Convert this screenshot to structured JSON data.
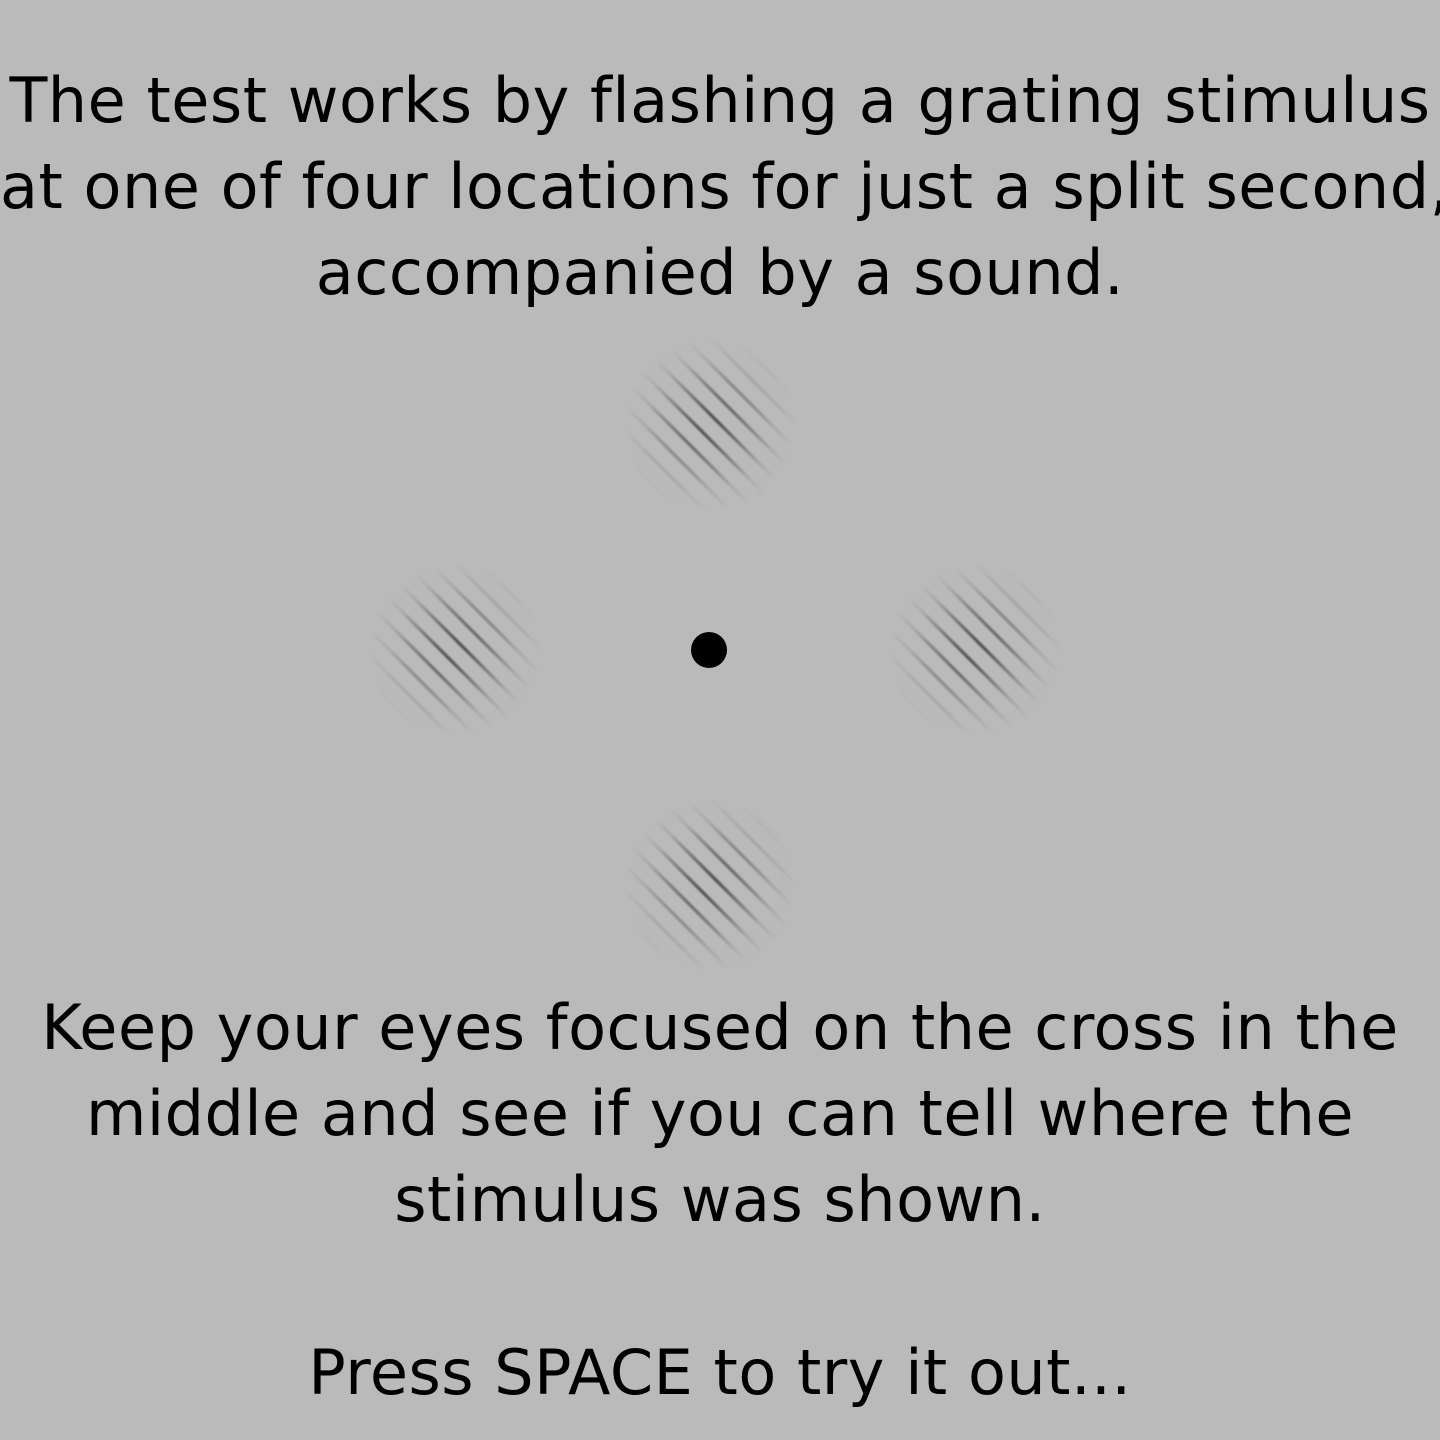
{
  "intro": {
    "lines": [
      "The test works by flashing a grating stimulus",
      "at one of four locations for just a split second,",
      "accompanied by a sound."
    ]
  },
  "instructions": {
    "lines": [
      "Keep your eyes focused on the cross in the",
      "middle and see if you can tell where the",
      "stimulus was shown."
    ]
  },
  "prompt": {
    "text": "Press SPACE to try it out..."
  },
  "colors": {
    "background": "#bababa",
    "text": "#000000",
    "fixation": "#000000"
  },
  "stimuli": [
    {
      "position": "top",
      "type": "gabor-grating"
    },
    {
      "position": "left",
      "type": "gabor-grating"
    },
    {
      "position": "right",
      "type": "gabor-grating"
    },
    {
      "position": "bottom",
      "type": "gabor-grating"
    }
  ]
}
